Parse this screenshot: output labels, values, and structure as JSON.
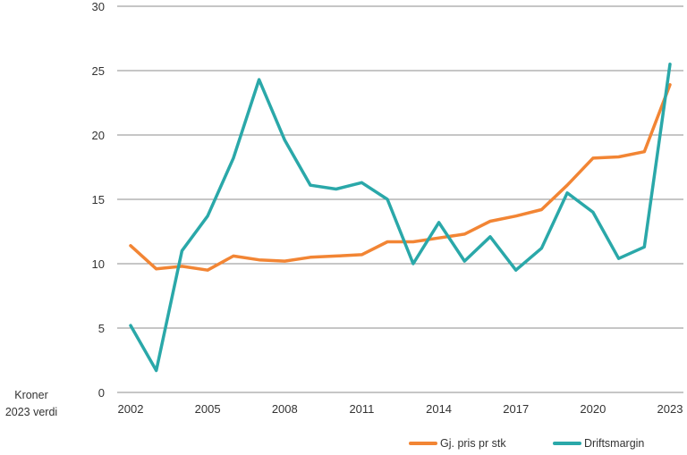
{
  "chart_data": {
    "type": "line",
    "ylabel_lines": [
      "Kroner",
      "2023 verdi"
    ],
    "x": [
      2002,
      2003,
      2004,
      2005,
      2006,
      2007,
      2008,
      2009,
      2010,
      2011,
      2012,
      2013,
      2014,
      2015,
      2016,
      2017,
      2018,
      2019,
      2020,
      2021,
      2022,
      2023
    ],
    "x_tick_labels": [
      "2002",
      "2005",
      "2008",
      "2011",
      "2014",
      "2017",
      "2020",
      "2023"
    ],
    "ylim": [
      0,
      30
    ],
    "y_ticks": [
      0,
      5,
      10,
      15,
      20,
      25,
      30
    ],
    "grid": true,
    "legend_position": "bottom-right",
    "series": [
      {
        "name": "Gj. pris pr stk",
        "color": "#F28534",
        "values": [
          11.4,
          9.6,
          9.8,
          9.5,
          10.6,
          10.3,
          10.2,
          10.5,
          10.6,
          10.7,
          11.7,
          11.7,
          12.0,
          12.3,
          13.3,
          13.7,
          14.2,
          16.1,
          18.2,
          18.3,
          18.7,
          23.9
        ]
      },
      {
        "name": "Driftsmargin",
        "color": "#2AA8A9",
        "values": [
          5.2,
          1.7,
          11.0,
          13.7,
          18.2,
          24.3,
          19.6,
          16.1,
          15.8,
          16.3,
          15.0,
          10.0,
          13.2,
          10.2,
          12.1,
          9.5,
          11.2,
          15.5,
          14.0,
          10.4,
          11.3,
          25.5
        ]
      }
    ]
  }
}
